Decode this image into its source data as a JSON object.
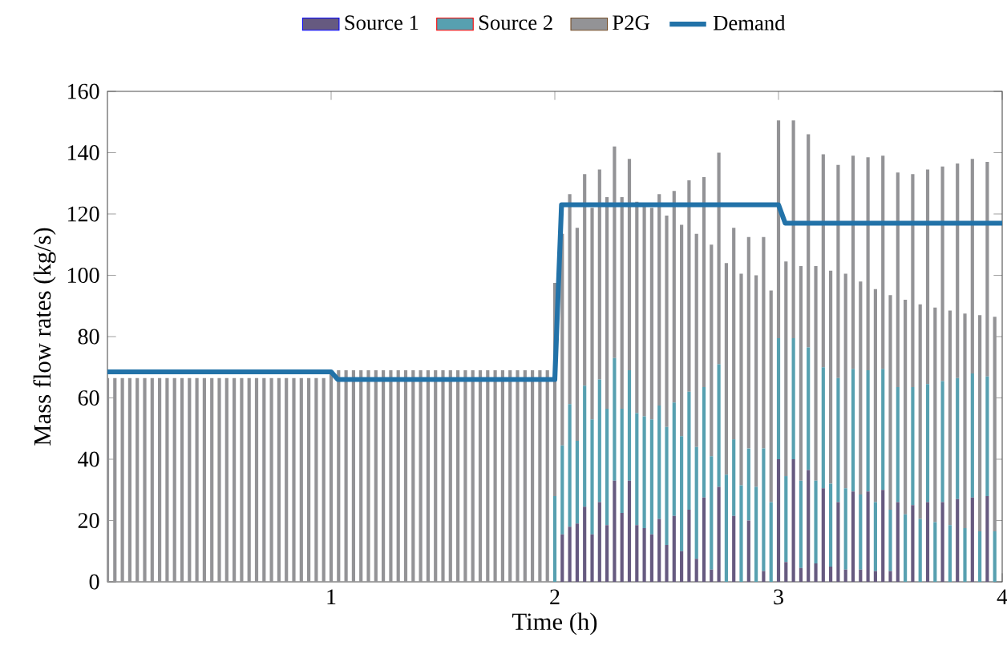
{
  "chart_data": {
    "type": "bar",
    "stacked": true,
    "xlabel": "Time (h)",
    "ylabel": "Mass flow rates (kg/s)",
    "xlim": [
      0,
      4
    ],
    "xticks": [
      1,
      2,
      3,
      4
    ],
    "ylim": [
      0,
      160
    ],
    "yticks": [
      0,
      20,
      40,
      60,
      80,
      100,
      120,
      140,
      160
    ],
    "legend": "top",
    "x": [
      0,
      0.0333,
      0.0667,
      0.1,
      0.1333,
      0.1667,
      0.2,
      0.2333,
      0.2667,
      0.3,
      0.3333,
      0.3667,
      0.4,
      0.4333,
      0.4667,
      0.5,
      0.5333,
      0.5667,
      0.6,
      0.6333,
      0.6667,
      0.7,
      0.7333,
      0.7667,
      0.8,
      0.8333,
      0.8667,
      0.9,
      0.9333,
      0.9667,
      1,
      1.0333,
      1.0667,
      1.1,
      1.1333,
      1.1667,
      1.2,
      1.2333,
      1.2667,
      1.3,
      1.3333,
      1.3667,
      1.4,
      1.4333,
      1.4667,
      1.5,
      1.5333,
      1.5667,
      1.6,
      1.6333,
      1.6667,
      1.7,
      1.7333,
      1.7667,
      1.8,
      1.8333,
      1.8667,
      1.9,
      1.9333,
      1.9667,
      2,
      2.0333,
      2.0667,
      2.1,
      2.1333,
      2.1667,
      2.2,
      2.2333,
      2.2667,
      2.3,
      2.3333,
      2.3667,
      2.4,
      2.4333,
      2.4667,
      2.5,
      2.5333,
      2.5667,
      2.6,
      2.6333,
      2.6667,
      2.7,
      2.7333,
      2.7667,
      2.8,
      2.8333,
      2.8667,
      2.9,
      2.9333,
      2.9667,
      3,
      3.0333,
      3.0667,
      3.1,
      3.1333,
      3.1667,
      3.2,
      3.2333,
      3.2667,
      3.3,
      3.3333,
      3.3667,
      3.4,
      3.4333,
      3.4667,
      3.5,
      3.5333,
      3.5667,
      3.6,
      3.6333,
      3.6667,
      3.7,
      3.7333,
      3.7667,
      3.8,
      3.8333,
      3.8667,
      3.9,
      3.9333,
      3.9667
    ],
    "series": [
      {
        "name": "Source 1",
        "color": "#665a80",
        "values": [
          0,
          0,
          0,
          0,
          0,
          0,
          0,
          0,
          0,
          0,
          0,
          0,
          0,
          0,
          0,
          0,
          0,
          0,
          0,
          0,
          0,
          0,
          0,
          0,
          0,
          0,
          0,
          0,
          0,
          0,
          0,
          0,
          0,
          0,
          0,
          0,
          0,
          0,
          0,
          0,
          0,
          0,
          0,
          0,
          0,
          0,
          0,
          0,
          0,
          0,
          0,
          0,
          0,
          0,
          0,
          0,
          0,
          0,
          0,
          0,
          0,
          15.5,
          18,
          19,
          24.5,
          15.5,
          26,
          18.5,
          33,
          22.5,
          33,
          18.5,
          17.5,
          15.5,
          20.5,
          12,
          21.5,
          10,
          23.5,
          7.5,
          27.5,
          4,
          31,
          0,
          21.5,
          0,
          20,
          0,
          3.5,
          0,
          40,
          6.5,
          40,
          4.5,
          36.5,
          6,
          30.5,
          5,
          26,
          4,
          29.5,
          4,
          29.5,
          3.5,
          30,
          3.5,
          26,
          0,
          25,
          0,
          26,
          0,
          26,
          0,
          27,
          0,
          27.5,
          0,
          28,
          0
        ]
      },
      {
        "name": "Source 2",
        "color": "#57a0b0",
        "values": [
          0,
          0,
          0,
          0,
          0,
          0,
          0,
          0,
          0,
          0,
          0,
          0,
          0,
          0,
          0,
          0,
          0,
          0,
          0,
          0,
          0,
          0,
          0,
          0,
          0,
          0,
          0,
          0,
          0,
          0,
          0,
          0,
          0,
          0,
          0,
          0,
          0,
          0,
          0,
          0,
          0,
          0,
          0,
          0,
          0,
          0,
          0,
          0,
          0,
          0,
          0,
          0,
          0,
          0,
          0,
          0,
          0,
          0,
          0,
          0,
          28,
          29,
          40,
          27,
          39.5,
          37.5,
          40,
          38,
          40,
          34,
          36,
          36.5,
          36.5,
          37.5,
          37,
          38.5,
          37,
          37.5,
          38.5,
          36.5,
          36,
          37,
          40,
          35,
          25,
          31.5,
          23.5,
          31,
          40,
          26,
          39.5,
          28,
          39.5,
          28.5,
          40,
          27,
          39.5,
          27,
          40.5,
          26.5,
          40,
          24.5,
          39.5,
          22.5,
          39.5,
          20,
          37.5,
          22,
          38.5,
          20.5,
          38.5,
          19.5,
          39.5,
          18.5,
          39.5,
          17.5,
          40.5,
          16.5,
          39,
          16.5
        ]
      },
      {
        "name": "P2G",
        "color": "#939396",
        "values": [
          66.5,
          66.5,
          66.5,
          66.5,
          66.5,
          66.5,
          66.5,
          66.5,
          66.5,
          66.5,
          66.5,
          66.5,
          66.5,
          66.5,
          66.5,
          66.5,
          66.5,
          66.5,
          66.5,
          66.5,
          66.5,
          66.5,
          66.5,
          66.5,
          66.5,
          66.5,
          66.5,
          66.5,
          66.5,
          66.5,
          69,
          69,
          69,
          69,
          69,
          69,
          69,
          69,
          69,
          69,
          69,
          69,
          69,
          69,
          69,
          69,
          69,
          69,
          69,
          69,
          69,
          69,
          69,
          69,
          69,
          69,
          69,
          69,
          69,
          69,
          69.5,
          69,
          68.5,
          69.5,
          69,
          69,
          68.5,
          69,
          69,
          69,
          69,
          69,
          68.5,
          69,
          69,
          69,
          69,
          69,
          69,
          69.5,
          68.5,
          69,
          69,
          69,
          69,
          69,
          69,
          69,
          69,
          69,
          71,
          70,
          71,
          70,
          69.5,
          70,
          69.5,
          69.5,
          69.5,
          70,
          69.5,
          69.5,
          69.5,
          69.5,
          69.5,
          70,
          70,
          70,
          69.5,
          70,
          70,
          70,
          70,
          70,
          70,
          70,
          70,
          70.5,
          70,
          70
        ]
      },
      {
        "name": "Demand",
        "type": "line",
        "color": "#2272a8",
        "x": [
          0,
          1,
          1.03,
          2,
          2.03,
          3,
          3.03,
          4
        ],
        "values": [
          68.5,
          68.5,
          66,
          66,
          123,
          123,
          117,
          117
        ]
      }
    ]
  }
}
